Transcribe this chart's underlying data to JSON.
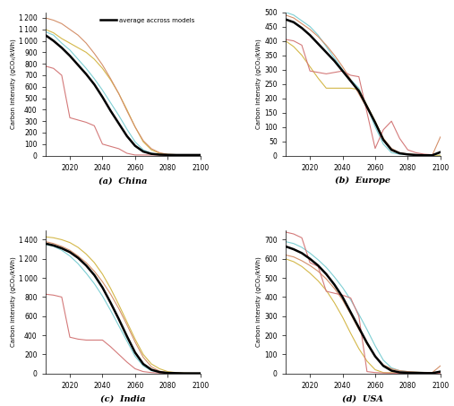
{
  "years": [
    2005,
    2010,
    2015,
    2020,
    2025,
    2030,
    2035,
    2040,
    2045,
    2050,
    2055,
    2060,
    2065,
    2070,
    2075,
    2080,
    2085,
    2090,
    2095,
    2100
  ],
  "china": {
    "cyan": [
      1080,
      1050,
      980,
      920,
      840,
      760,
      670,
      570,
      460,
      350,
      230,
      120,
      50,
      20,
      10,
      8,
      5,
      5,
      5,
      5
    ],
    "yellow": [
      1100,
      1070,
      1020,
      980,
      940,
      900,
      840,
      760,
      660,
      540,
      400,
      250,
      120,
      50,
      20,
      10,
      8,
      6,
      5,
      5
    ],
    "orange": [
      1200,
      1180,
      1150,
      1100,
      1050,
      980,
      890,
      790,
      670,
      540,
      390,
      250,
      130,
      60,
      25,
      10,
      8,
      6,
      5,
      5
    ],
    "pink": [
      780,
      760,
      700,
      330,
      310,
      290,
      260,
      100,
      80,
      60,
      20,
      5,
      5,
      5,
      5,
      5,
      5,
      5,
      5,
      5
    ],
    "average": [
      1050,
      1000,
      940,
      870,
      790,
      710,
      620,
      510,
      390,
      280,
      170,
      85,
      35,
      15,
      8,
      6,
      5,
      5,
      5,
      5
    ]
  },
  "europe": {
    "cyan": [
      500,
      490,
      470,
      450,
      420,
      380,
      340,
      300,
      265,
      235,
      170,
      100,
      40,
      10,
      5,
      3,
      2,
      1,
      1,
      1
    ],
    "yellow": [
      400,
      380,
      350,
      310,
      270,
      235,
      235,
      235,
      235,
      230,
      175,
      120,
      60,
      20,
      8,
      5,
      3,
      2,
      1,
      1
    ],
    "orange": [
      490,
      480,
      460,
      440,
      415,
      385,
      350,
      310,
      265,
      215,
      165,
      115,
      60,
      25,
      10,
      5,
      3,
      2,
      1,
      65
    ],
    "pink": [
      405,
      400,
      385,
      295,
      290,
      285,
      290,
      295,
      280,
      275,
      150,
      25,
      90,
      120,
      60,
      20,
      10,
      5,
      3,
      10
    ],
    "average": [
      475,
      465,
      445,
      420,
      390,
      360,
      330,
      295,
      260,
      225,
      170,
      115,
      55,
      20,
      8,
      4,
      2,
      1,
      1,
      12
    ]
  },
  "india": {
    "cyan": [
      1350,
      1330,
      1290,
      1230,
      1150,
      1050,
      940,
      810,
      660,
      500,
      340,
      180,
      80,
      30,
      10,
      5,
      4,
      3,
      2,
      2
    ],
    "yellow": [
      1430,
      1420,
      1400,
      1370,
      1320,
      1250,
      1160,
      1040,
      890,
      720,
      540,
      360,
      200,
      100,
      50,
      20,
      10,
      5,
      3,
      2
    ],
    "orange": [
      1380,
      1360,
      1330,
      1290,
      1230,
      1160,
      1070,
      960,
      830,
      680,
      510,
      330,
      170,
      70,
      25,
      8,
      5,
      3,
      2,
      2
    ],
    "pink": [
      830,
      820,
      800,
      380,
      360,
      350,
      350,
      350,
      280,
      200,
      120,
      50,
      20,
      10,
      5,
      3,
      2,
      1,
      1,
      1
    ],
    "average": [
      1360,
      1340,
      1310,
      1270,
      1210,
      1130,
      1030,
      900,
      740,
      570,
      390,
      220,
      100,
      40,
      15,
      6,
      4,
      2,
      2,
      2
    ]
  },
  "usa": {
    "cyan": [
      690,
      680,
      660,
      630,
      595,
      555,
      505,
      450,
      385,
      310,
      230,
      145,
      70,
      30,
      15,
      10,
      8,
      6,
      5,
      5
    ],
    "yellow": [
      600,
      585,
      560,
      525,
      485,
      435,
      370,
      295,
      210,
      130,
      65,
      20,
      5,
      4,
      3,
      2,
      2,
      1,
      1,
      1
    ],
    "orange": [
      620,
      610,
      590,
      565,
      535,
      495,
      445,
      385,
      310,
      230,
      155,
      90,
      45,
      25,
      15,
      10,
      8,
      6,
      5,
      40
    ],
    "pink": [
      740,
      730,
      710,
      580,
      560,
      430,
      420,
      410,
      395,
      300,
      10,
      5,
      3,
      2,
      1,
      1,
      1,
      1,
      1,
      1
    ],
    "average": [
      665,
      650,
      630,
      600,
      565,
      520,
      465,
      400,
      320,
      240,
      160,
      90,
      40,
      15,
      6,
      4,
      3,
      2,
      2,
      10
    ]
  },
  "colors": {
    "cyan": "#7ecfd4",
    "yellow": "#d4b84a",
    "orange": "#d4906a",
    "pink": "#d47a7a",
    "average": "#000000"
  },
  "line_widths": {
    "cyan": 0.8,
    "yellow": 0.8,
    "orange": 0.8,
    "pink": 0.8,
    "average": 1.8
  },
  "legend_label": "average accross models",
  "ylabel": "Carbon intensity (gCO₂/kWh)",
  "xlim": [
    2005,
    2100
  ],
  "china_ylim": [
    0,
    1250
  ],
  "europe_ylim": [
    0,
    500
  ],
  "india_ylim": [
    0,
    1500
  ],
  "usa_ylim": [
    0,
    750
  ],
  "china_yticks": [
    0,
    100,
    200,
    300,
    400,
    500,
    600,
    700,
    800,
    900,
    1000,
    1100,
    1200
  ],
  "europe_yticks": [
    0,
    50,
    100,
    150,
    200,
    250,
    300,
    350,
    400,
    450,
    500
  ],
  "india_yticks": [
    0,
    200,
    400,
    600,
    800,
    1000,
    1200,
    1400
  ],
  "usa_yticks": [
    0,
    100,
    200,
    300,
    400,
    500,
    600,
    700
  ],
  "xticks": [
    2020,
    2040,
    2060,
    2080,
    2100
  ],
  "subplot_labels": [
    "(a)  China",
    "(b)  Europe",
    "(c)  India",
    "(d)  USA"
  ]
}
